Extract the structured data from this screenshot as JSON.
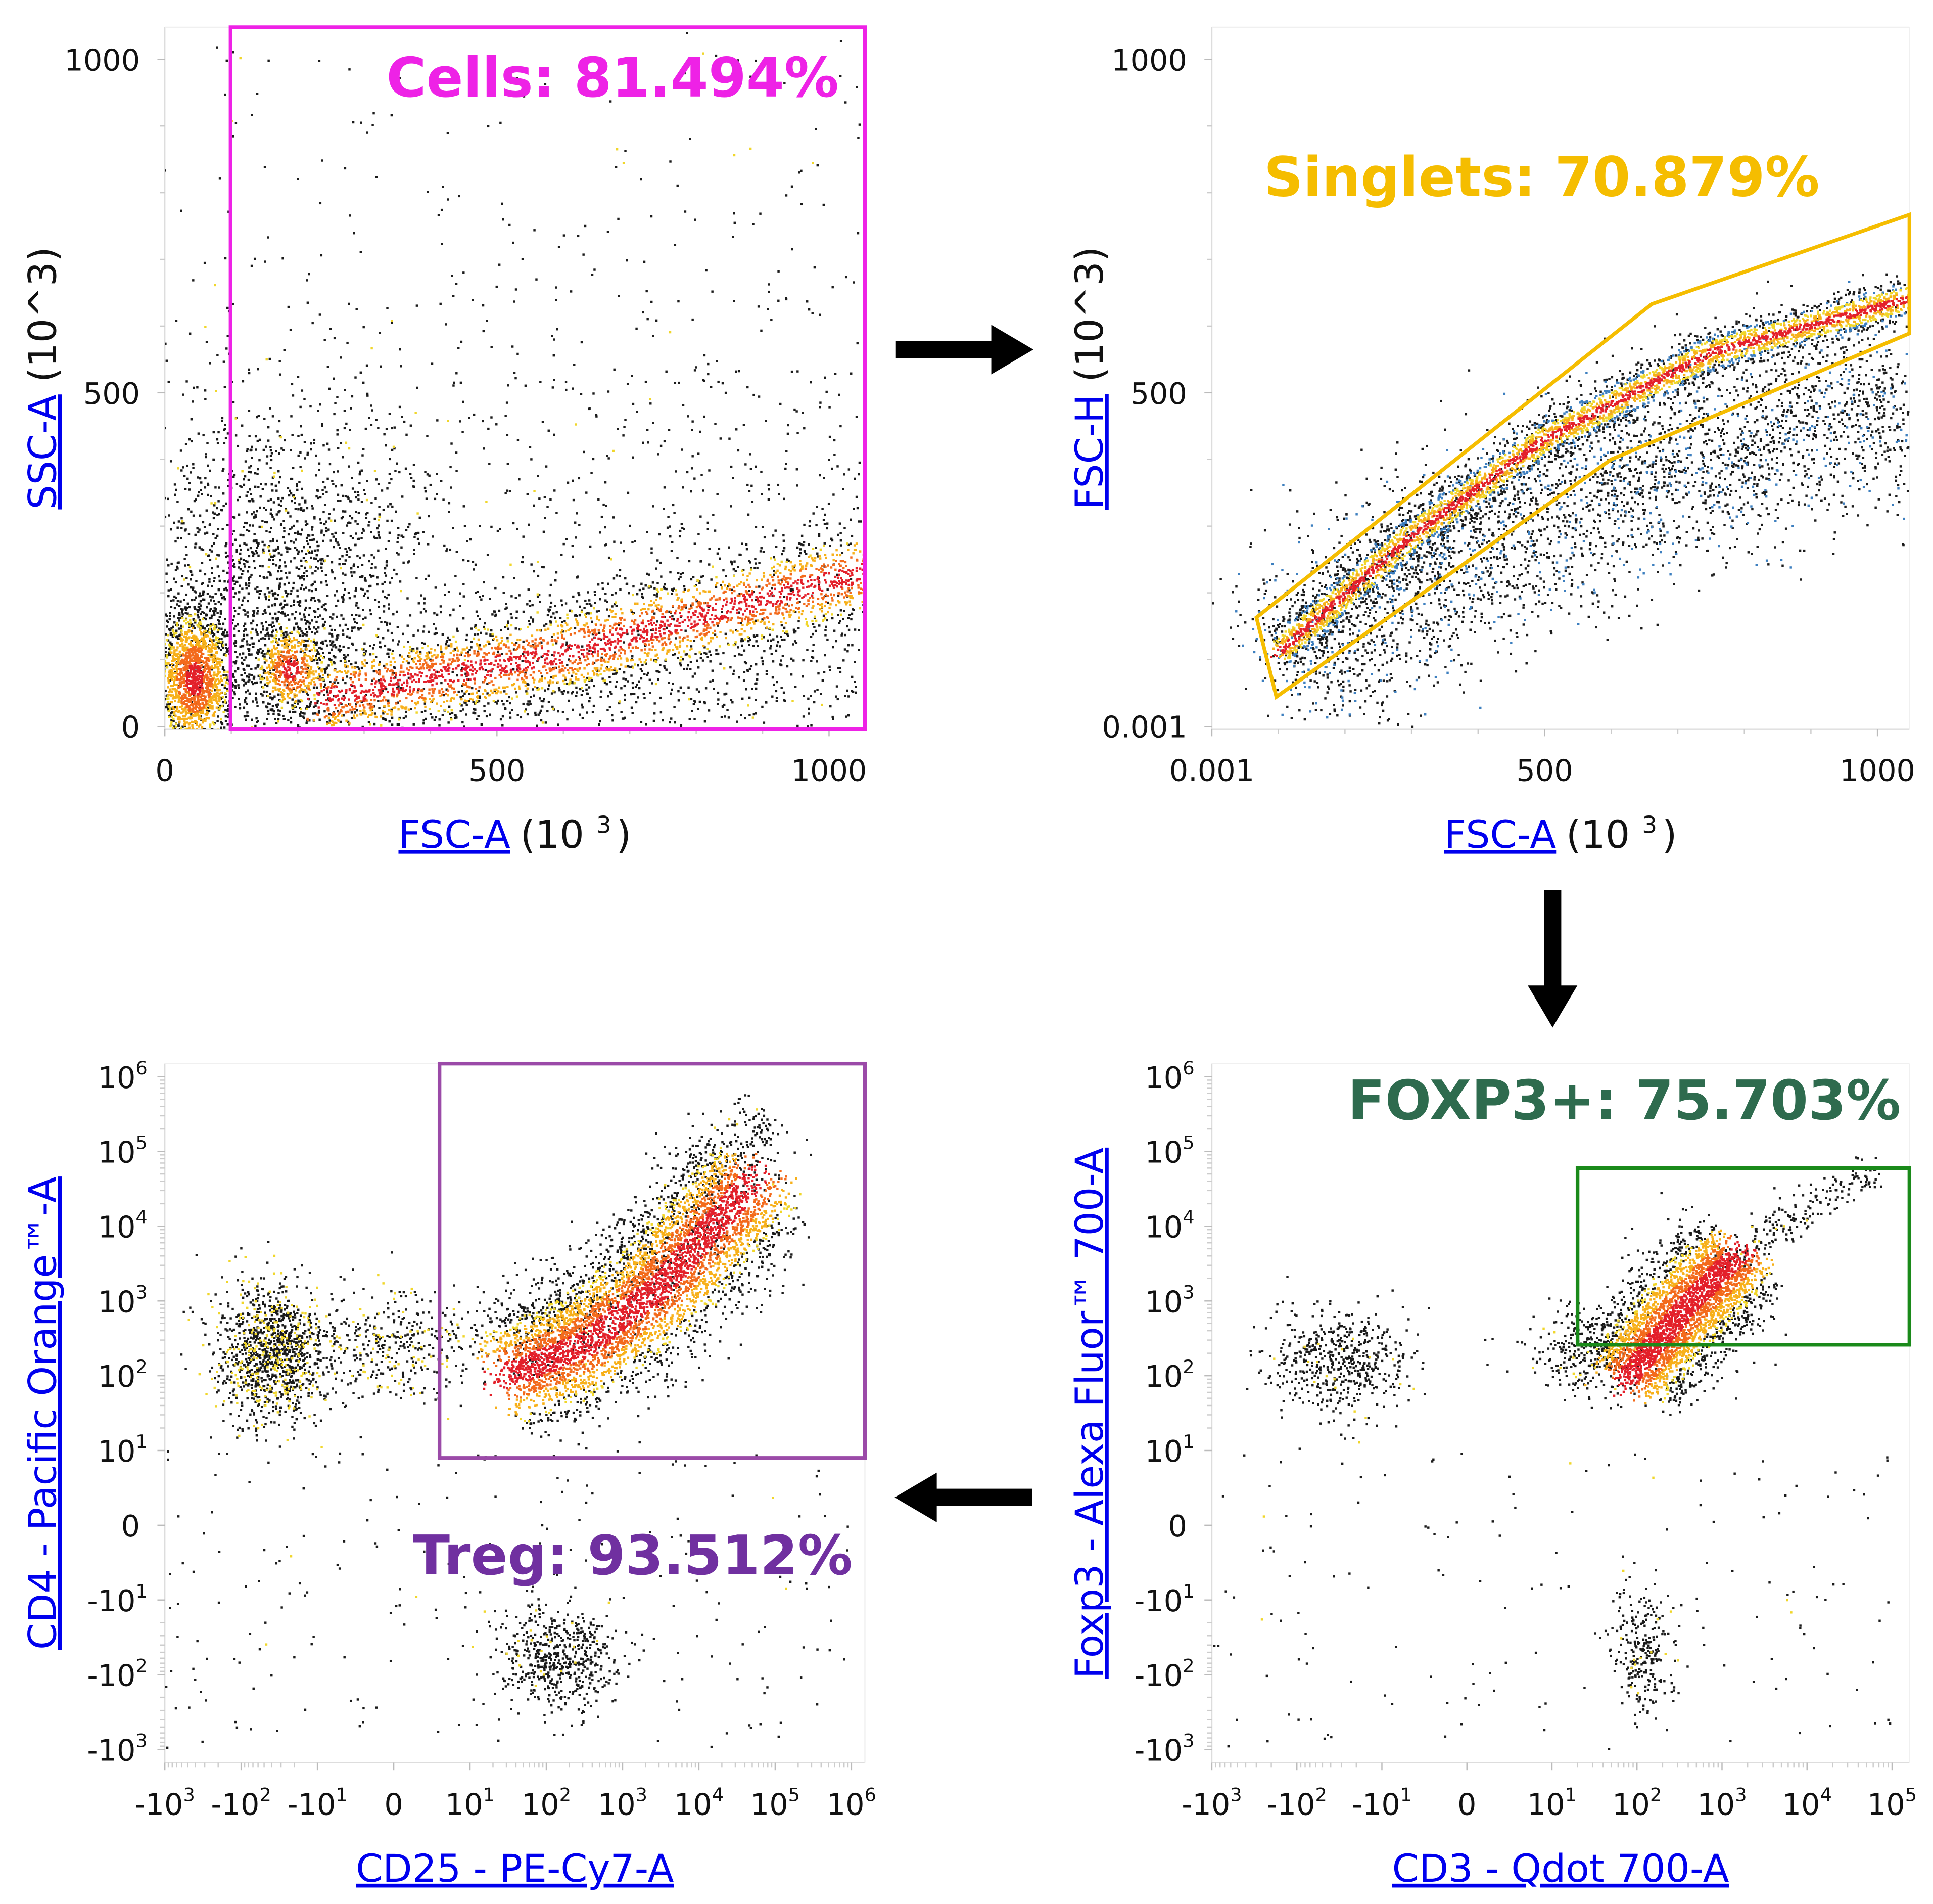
{
  "colors": {
    "axis_name": "#0000ee",
    "cells_gate": "#ee22e6",
    "singlets_gate": "#f5bd00",
    "treg_gate": "#9b4aa8",
    "treg_label": "#7030a0",
    "foxp3_gate": "#1a8a1a",
    "foxp3_label": "#2e6b4e",
    "density_palette": [
      "#e3202a",
      "#f36a1c",
      "#f7b01a",
      "#f0d62a",
      "#1a1a1a"
    ],
    "blue_halo": "#3d7fbf"
  },
  "arrows": [
    {
      "from": "cells-plot",
      "to": "singlets-plot",
      "direction": "right"
    },
    {
      "from": "singlets-plot",
      "to": "foxp3-plot",
      "direction": "down"
    },
    {
      "from": "foxp3-plot",
      "to": "treg-plot",
      "direction": "left"
    }
  ],
  "chart_data": [
    {
      "id": "cells-plot",
      "type": "scatter",
      "scale": "linear",
      "xlabel": {
        "name": "FSC-A",
        "unit_base": "(10 ",
        "unit_exp": "3",
        "unit_close": ")"
      },
      "ylabel": {
        "name": "SSC-A",
        "unit": " (10^3)"
      },
      "xlim": [
        0,
        1054
      ],
      "ylim": [
        -4,
        1048
      ],
      "xticks": [
        {
          "v": 0,
          "text": "0"
        },
        {
          "v": 500,
          "text": "500"
        },
        {
          "v": 1000,
          "text": "1000"
        }
      ],
      "yticks": [
        {
          "v": 0,
          "text": "0"
        },
        {
          "v": 500,
          "text": "500"
        },
        {
          "v": 1000,
          "text": "1000"
        }
      ],
      "gate": {
        "name": "Cells",
        "label": "Cells: 81.494%",
        "shape": "rectangle",
        "x": [
          99,
          1054
        ],
        "y": [
          -4,
          1048
        ],
        "color": "#ee22e6"
      },
      "populations": [
        {
          "kind": "blob",
          "center": [
            45,
            70
          ],
          "spread": [
            30,
            55
          ],
          "n": 1700,
          "color": "density"
        },
        {
          "kind": "blob",
          "center": [
            190,
            85
          ],
          "spread": [
            28,
            35
          ],
          "n": 600,
          "color": "density"
        },
        {
          "kind": "blob",
          "center": [
            170,
            240
          ],
          "spread": [
            110,
            110
          ],
          "n": 1300,
          "color": "dark"
        },
        {
          "kind": "band",
          "path": [
            [
              230,
              40
            ],
            [
              600,
              110
            ],
            [
              1050,
              230
            ]
          ],
          "width": 35,
          "n": 2800,
          "color": "density"
        },
        {
          "kind": "scatter",
          "x": [
            0,
            1050
          ],
          "y": [
            0,
            1040
          ],
          "decay": 280,
          "n": 1800,
          "color": "dark"
        }
      ]
    },
    {
      "id": "singlets-plot",
      "type": "scatter",
      "scale": "linear",
      "xlabel": {
        "name": "FSC-A",
        "unit_base": "(10 ",
        "unit_exp": "3",
        "unit_close": ")"
      },
      "ylabel": {
        "name": "FSC-H",
        "unit": " (10^3)"
      },
      "xlim": [
        0,
        1048
      ],
      "ylim": [
        -4,
        1048
      ],
      "xticks": [
        {
          "v": 0,
          "text": "0.001"
        },
        {
          "v": 500,
          "text": "500"
        },
        {
          "v": 1000,
          "text": "1000"
        }
      ],
      "yticks": [
        {
          "v": 0,
          "text": "0.001"
        },
        {
          "v": 500,
          "text": "500"
        },
        {
          "v": 1000,
          "text": "1000"
        }
      ],
      "gate": {
        "name": "Singlets",
        "label": "Singlets: 70.879%",
        "shape": "polygon",
        "vertices": [
          [
            67,
            163
          ],
          [
            97,
            44
          ],
          [
            600,
            400
          ],
          [
            1048,
            589
          ],
          [
            1048,
            767
          ],
          [
            661,
            633
          ]
        ],
        "color": "#f5bd00"
      },
      "populations": [
        {
          "kind": "band",
          "path": [
            [
              100,
              110
            ],
            [
              300,
              285
            ],
            [
              500,
              430
            ],
            [
              750,
              560
            ],
            [
              1045,
              640
            ]
          ],
          "width": 16,
          "n": 4200,
          "color": "density-blue"
        },
        {
          "kind": "band",
          "path": [
            [
              110,
              80
            ],
            [
              400,
              280
            ],
            [
              700,
              390
            ],
            [
              1045,
              500
            ]
          ],
          "width": 75,
          "n": 3600,
          "color": "dark-blue"
        }
      ]
    },
    {
      "id": "treg-plot",
      "type": "scatter",
      "scale": "biexponential",
      "xlabel": {
        "name": "CD25 - PE-Cy7-A"
      },
      "ylabel": {
        "name": "CD4 - Pacific Orange™-A"
      },
      "xlim": [
        -1000,
        1500000
      ],
      "ylim": [
        -1500,
        1500000
      ],
      "xticks": [
        {
          "v": -1000,
          "text": "-10",
          "sup": "3"
        },
        {
          "v": -100,
          "text": "-10",
          "sup": "2"
        },
        {
          "v": -10,
          "text": "-10",
          "sup": "1"
        },
        {
          "v": 0,
          "text": "0"
        },
        {
          "v": 10,
          "text": "10",
          "sup": "1"
        },
        {
          "v": 100,
          "text": "10",
          "sup": "2"
        },
        {
          "v": 1000,
          "text": "10",
          "sup": "3"
        },
        {
          "v": 10000,
          "text": "10",
          "sup": "4"
        },
        {
          "v": 100000,
          "text": "10",
          "sup": "5"
        },
        {
          "v": 1000000,
          "text": "10",
          "sup": "6"
        }
      ],
      "yticks": [
        {
          "v": -1000,
          "text": "-10",
          "sup": "3"
        },
        {
          "v": -100,
          "text": "-10",
          "sup": "2"
        },
        {
          "v": -10,
          "text": "-10",
          "sup": "1"
        },
        {
          "v": 0,
          "text": "0"
        },
        {
          "v": 10,
          "text": "10",
          "sup": "1"
        },
        {
          "v": 100,
          "text": "10",
          "sup": "2"
        },
        {
          "v": 1000,
          "text": "10",
          "sup": "3"
        },
        {
          "v": 10000,
          "text": "10",
          "sup": "4"
        },
        {
          "v": 100000,
          "text": "10",
          "sup": "5"
        },
        {
          "v": 1000000,
          "text": "10",
          "sup": "6"
        }
      ],
      "gate": {
        "name": "Treg",
        "label": "Treg: 93.512%",
        "shape": "rectangle",
        "x": [
          6,
          1500000
        ],
        "y": [
          9,
          1500000
        ],
        "color": "#9b4aa8"
      },
      "populations": [
        {
          "kind": "band",
          "path": [
            [
              30,
              100
            ],
            [
              300,
              250
            ],
            [
              3000,
              1500
            ],
            [
              50000,
              40000
            ]
          ],
          "width": 0.42,
          "n": 4800,
          "color": "density"
        },
        {
          "kind": "band",
          "path": [
            [
              40,
              200
            ],
            [
              3000,
              3000
            ],
            [
              80000,
              300000
            ]
          ],
          "width": 0.3,
          "n": 700,
          "color": "dark"
        },
        {
          "kind": "blob",
          "center": [
            -40,
            200
          ],
          "spread": [
            0.35,
            0.45
          ],
          "n": 1200,
          "color": "dark-yellow"
        },
        {
          "kind": "blob",
          "center": [
            0,
            250
          ],
          "spread": [
            0.7,
            0.35
          ],
          "n": 450,
          "color": "dark-yellow"
        },
        {
          "kind": "blob",
          "center": [
            150,
            -60
          ],
          "spread": [
            0.4,
            0.35
          ],
          "n": 550,
          "color": "dark"
        },
        {
          "kind": "scatter",
          "x": [
            -1000,
            1000000
          ],
          "y": [
            -1000,
            10
          ],
          "n": 220,
          "color": "dark"
        }
      ]
    },
    {
      "id": "foxp3-plot",
      "type": "scatter",
      "scale": "biexponential",
      "xlabel": {
        "name": "CD3 - Qdot 700-A"
      },
      "ylabel": {
        "name": "Foxp3 - Alexa Fluor™ 700-A"
      },
      "xlim": [
        -1000,
        160000
      ],
      "ylim": [
        -1500,
        1500000
      ],
      "xticks": [
        {
          "v": -1000,
          "text": "-10",
          "sup": "3"
        },
        {
          "v": -100,
          "text": "-10",
          "sup": "2"
        },
        {
          "v": -10,
          "text": "-10",
          "sup": "1"
        },
        {
          "v": 0,
          "text": "0"
        },
        {
          "v": 10,
          "text": "10",
          "sup": "1"
        },
        {
          "v": 100,
          "text": "10",
          "sup": "2"
        },
        {
          "v": 1000,
          "text": "10",
          "sup": "3"
        },
        {
          "v": 10000,
          "text": "10",
          "sup": "4"
        },
        {
          "v": 100000,
          "text": "10",
          "sup": "5"
        }
      ],
      "yticks": [
        {
          "v": -1000,
          "text": "-10",
          "sup": "3"
        },
        {
          "v": -100,
          "text": "-10",
          "sup": "2"
        },
        {
          "v": -10,
          "text": "-10",
          "sup": "1"
        },
        {
          "v": 0,
          "text": "0"
        },
        {
          "v": 10,
          "text": "10",
          "sup": "1"
        },
        {
          "v": 100,
          "text": "10",
          "sup": "2"
        },
        {
          "v": 1000,
          "text": "10",
          "sup": "3"
        },
        {
          "v": 10000,
          "text": "10",
          "sup": "4"
        },
        {
          "v": 100000,
          "text": "10",
          "sup": "5"
        },
        {
          "v": 1000000,
          "text": "10",
          "sup": "6"
        }
      ],
      "gate": {
        "name": "FOXP3+",
        "label": "FOXP3+: 75.703%",
        "shape": "rectangle",
        "x": [
          20,
          160000
        ],
        "y": [
          260,
          60000
        ],
        "color": "#1a8a1a"
      },
      "populations": [
        {
          "kind": "band",
          "path": [
            [
              80,
              100
            ],
            [
              400,
              900
            ],
            [
              1500,
              4000
            ]
          ],
          "width": 0.33,
          "n": 3400,
          "color": "density"
        },
        {
          "kind": "band",
          "path": [
            [
              1000,
              3000
            ],
            [
              60000,
              60000
            ]
          ],
          "width": 0.12,
          "n": 220,
          "color": "dark"
        },
        {
          "kind": "blob",
          "center": [
            -30,
            150
          ],
          "spread": [
            0.4,
            0.35
          ],
          "n": 550,
          "color": "dark"
        },
        {
          "kind": "blob",
          "center": [
            30,
            200
          ],
          "spread": [
            0.35,
            0.3
          ],
          "n": 350,
          "color": "dark"
        },
        {
          "kind": "blob",
          "center": [
            120,
            -50
          ],
          "spread": [
            0.18,
            0.4
          ],
          "n": 260,
          "color": "dark"
        },
        {
          "kind": "scatter",
          "x": [
            -1000,
            100000
          ],
          "y": [
            -1000,
            10
          ],
          "n": 160,
          "color": "dark"
        }
      ]
    }
  ]
}
